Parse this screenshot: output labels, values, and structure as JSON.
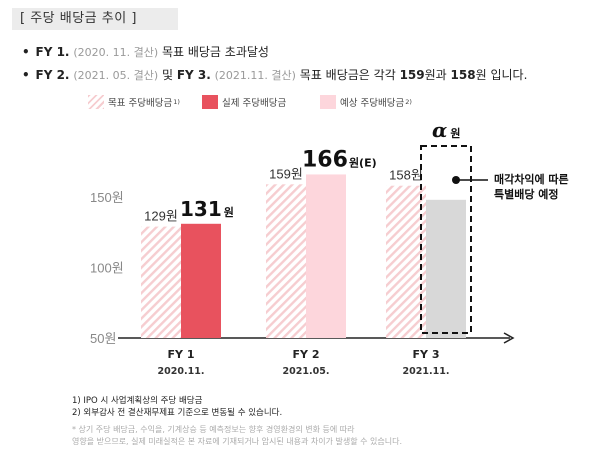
{
  "header": {
    "title": "[ 주당 배당금  추이 ]"
  },
  "bullets": [
    {
      "marker": "•",
      "label": "FY 1.",
      "period": "(2020. 11. 결산)",
      "text": "목표 배당금 초과달성"
    },
    {
      "marker": "•",
      "label": "FY 2.",
      "period": "(2021. 05. 결산)",
      "joiner": "및",
      "label2": "FY 3.",
      "period2": "(2021.11. 결산)",
      "text": "목표 배당금은 각각",
      "v1": "159",
      "unit1": "원과",
      "v2": "158",
      "unit2": "원 입니다."
    }
  ],
  "legend": [
    {
      "label": "목표 주당배당금",
      "sup": "1)",
      "style": "hatch",
      "color": "#f6cdd0"
    },
    {
      "label": "실제 주당배당금",
      "sup": "",
      "style": "solid",
      "color": "#e8525e"
    },
    {
      "label": "예상 주당배당금",
      "sup": "2)",
      "style": "solid",
      "color": "#fdd6dc"
    }
  ],
  "chart_data": {
    "type": "bar",
    "categories": [
      "FY 1",
      "FY 2",
      "FY 3"
    ],
    "sublabels": [
      "2020.11.",
      "2021.05.",
      "2021.11."
    ],
    "series": [
      {
        "name": "목표 주당배당금",
        "values": [
          129,
          159,
          158
        ],
        "labels": [
          "129원",
          "159원",
          "158원"
        ]
      },
      {
        "name": "실제/예상 주당배당금",
        "values": [
          131,
          166,
          148
        ],
        "labels": [
          "131",
          "166",
          "α"
        ],
        "units": [
          "원",
          "원(E)",
          "원"
        ],
        "colors": [
          "#e8525e",
          "#fdd6dc",
          "#d8d8d8"
        ]
      }
    ],
    "yticks": [
      50,
      100,
      150
    ],
    "ytick_labels": [
      "50원",
      "100원",
      "150원"
    ],
    "ylim": [
      50,
      185
    ],
    "annotation": {
      "lines": [
        "매각차익에 따른",
        "특별배당 예정"
      ]
    }
  },
  "notes": [
    "1) IPO 시 사업계획상의 주당 배당금",
    "2) 외부감사 전 결산재무제표 기준으로 변동될 수 있습니다."
  ],
  "disclaimer": [
    "* 상기 주당 배당금, 수익을, 기계상승 등 예측정보는 향후 경영환경의 변화 등에 따라",
    "영향을 받으므로, 실제 미래실적은 본 자료에 기재되거나 암시된 내용과 차이가 발생할 수 있습니다."
  ],
  "colors": {
    "actual": "#e8525e",
    "expected": "#fdd6dc",
    "target_hatch": "#f6cdd0",
    "special": "#d8d8d8",
    "axis": "#222222"
  }
}
